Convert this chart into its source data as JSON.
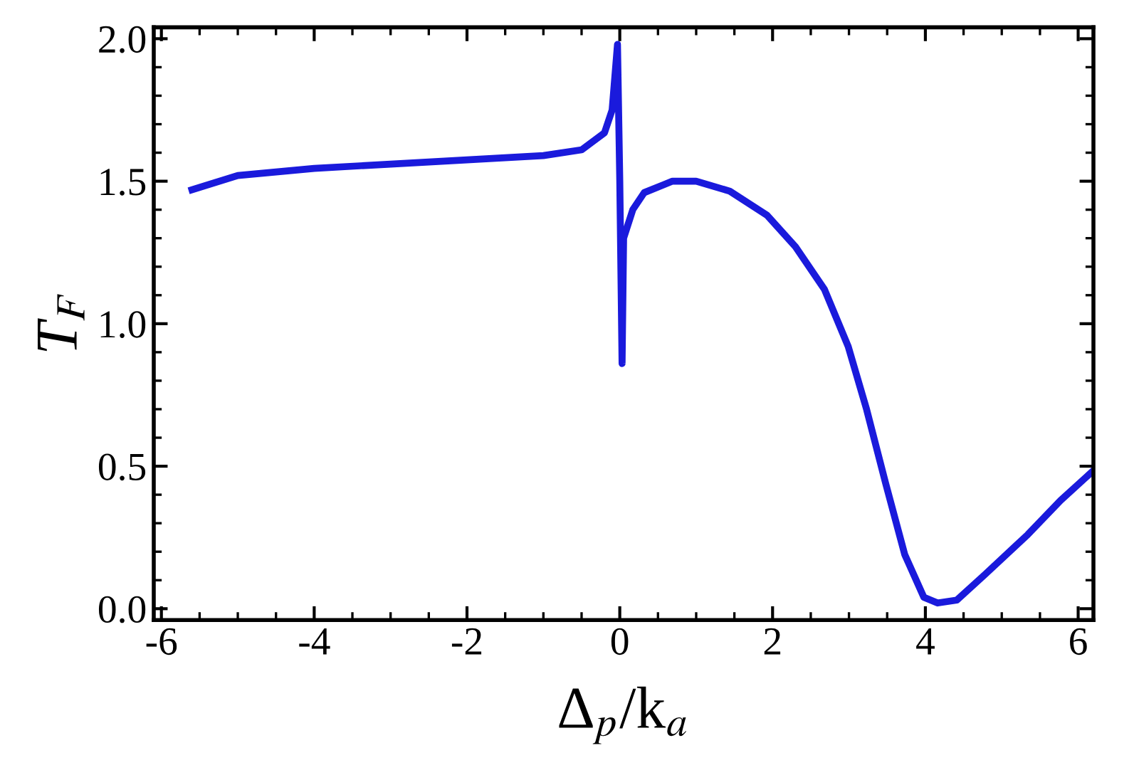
{
  "chart_data": {
    "type": "line",
    "xlabel": "Δ$_{p}$/k$_{a}$",
    "ylabel": "T$_{F}$",
    "x": [
      -5.6,
      -5.0,
      -4.0,
      -3.0,
      -2.0,
      -1.0,
      -0.5,
      -0.2,
      -0.1,
      -0.03,
      0.0,
      0.03,
      0.05,
      0.17,
      0.32,
      0.69,
      1.0,
      1.44,
      1.93,
      2.3,
      2.68,
      2.99,
      3.23,
      3.48,
      3.73,
      3.98,
      4.16,
      4.41,
      4.78,
      5.34,
      5.77,
      6.18
    ],
    "series": [
      {
        "color": "#1a1adc",
        "values": [
          1.47,
          1.52,
          1.545,
          1.56,
          1.575,
          1.59,
          1.61,
          1.67,
          1.75,
          1.98,
          1.5,
          0.86,
          1.3,
          1.4,
          1.46,
          1.5,
          1.5,
          1.465,
          1.38,
          1.27,
          1.12,
          0.92,
          0.7,
          0.44,
          0.19,
          0.04,
          0.02,
          0.03,
          0.12,
          0.26,
          0.38,
          0.48
        ]
      }
    ],
    "xlim": [
      -6.1,
      6.2
    ],
    "ylim": [
      -0.04,
      2.04
    ],
    "xticks": [
      -6,
      -4,
      -2,
      0,
      2,
      4,
      6
    ],
    "yticks": [
      {
        "value": 0,
        "label": "0.0"
      },
      0.5,
      {
        "value": 1,
        "label": "1.0"
      },
      1.5,
      {
        "value": 2,
        "label": "2.0"
      }
    ],
    "grid": false,
    "legend": false,
    "marker": "none",
    "line_style": "solid"
  }
}
